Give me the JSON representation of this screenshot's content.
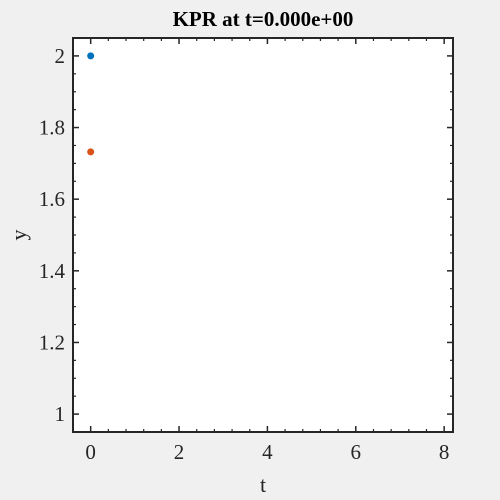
{
  "chart_data": {
    "type": "scatter",
    "title": "KPR at t=0.000e+00",
    "xlabel": "t",
    "ylabel": "y",
    "xlim": [
      -0.4,
      8.2
    ],
    "ylim": [
      0.95,
      2.05
    ],
    "xticks": [
      0,
      2,
      4,
      6,
      8
    ],
    "yticks": [
      1,
      1.2,
      1.4,
      1.6,
      1.8,
      2
    ],
    "xtick_labels": [
      "0",
      "2",
      "4",
      "6",
      "8"
    ],
    "ytick_labels": [
      "1",
      "1.2",
      "1.4",
      "1.6",
      "1.8",
      "2"
    ],
    "grid": false,
    "series": [
      {
        "x": [
          0
        ],
        "y": [
          2.0
        ],
        "color": "#0072bd"
      },
      {
        "x": [
          0
        ],
        "y": [
          1.732
        ],
        "color": "#d95319"
      }
    ]
  }
}
